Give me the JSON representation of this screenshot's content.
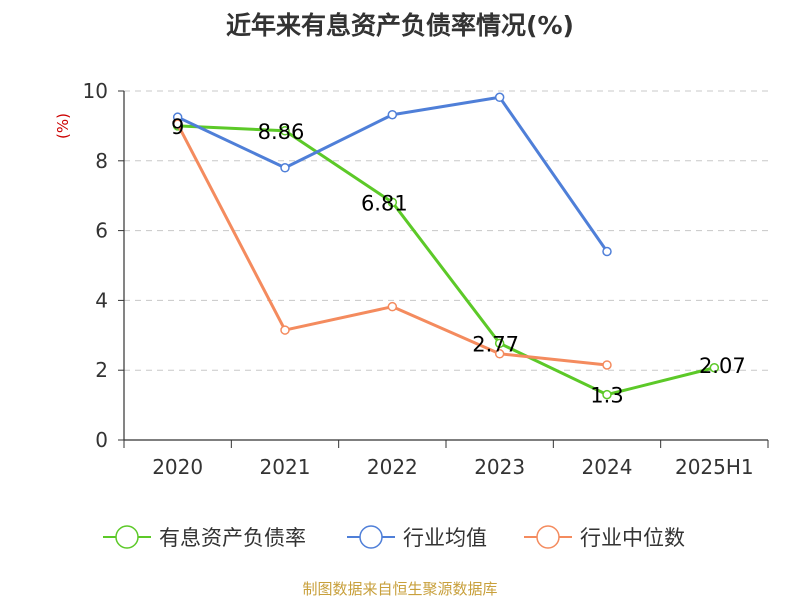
{
  "title": "近年来有息资产负债率情况(%)",
  "footer": "制图数据来自恒生聚源数据库",
  "colors": {
    "green": "#5cc928",
    "blue": "#4f7fd8",
    "orange": "#f48b5e",
    "unit": "#cc0000",
    "footer": "#c8a03c",
    "grid": "#c8c8c8",
    "axis": "#333333"
  },
  "chart_data": {
    "type": "line",
    "ylabel": "(%)",
    "ylim": [
      0,
      10
    ],
    "yticks": [
      "0",
      "2",
      "4",
      "6",
      "8",
      "10"
    ],
    "grid": "horizontal dashed",
    "legend_position": "bottom",
    "categories": [
      "2020",
      "2021",
      "2022",
      "2023",
      "2024",
      "2025H1"
    ],
    "series": [
      {
        "name": "有息资产负债率",
        "color": "#5cc928",
        "values": [
          9,
          8.86,
          6.81,
          2.77,
          1.3,
          2.07
        ],
        "labels": [
          "9",
          "8.86",
          "6.81",
          "2.77",
          "1.3",
          "2.07"
        ]
      },
      {
        "name": "行业均值",
        "color": "#4f7fd8",
        "values": [
          9.25,
          7.8,
          9.32,
          9.82,
          5.4,
          null
        ]
      },
      {
        "name": "行业中位数",
        "color": "#f48b5e",
        "values": [
          9.05,
          3.15,
          3.82,
          2.47,
          2.15,
          null
        ]
      }
    ]
  }
}
